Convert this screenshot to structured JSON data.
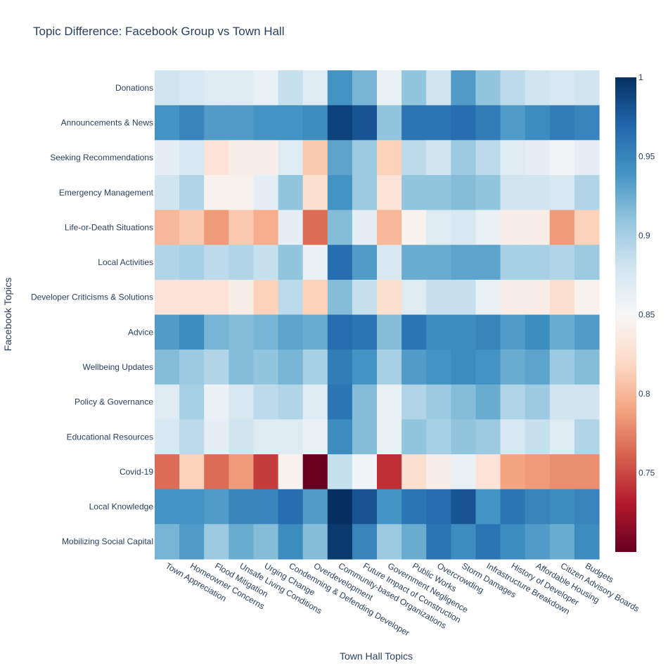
{
  "chart_data": {
    "type": "heatmap",
    "title": "Topic Difference: Facebook Group vs Town Hall",
    "xlabel": "Town Hall Topics",
    "ylabel": "Facebook Topics",
    "x_categories": [
      "Town Appreciation",
      "Homeowner Concerns",
      "Flood Mitigation",
      "Unsafe Living Conditions",
      "Urging Change",
      "Condemning & Defending Developer",
      "Overdevelopment",
      "Community-based Organizations",
      "Future Impact of Construction",
      "Government Negligence",
      "Public Works",
      "Overcrowding",
      "Storm Damages",
      "Infrastructure Breakdown",
      "History of Developer",
      "Affordable Housing",
      "Citizen Advisory Boards",
      "Budgets"
    ],
    "y_categories": [
      "Donations",
      "Announcements & News",
      "Seeking Recommendations",
      "Emergency Management",
      "Life-or-Death Situations",
      "Local Activities",
      "Developer Criticisms & Solutions",
      "Advice",
      "Wellbeing Updates",
      "Policy & Governance",
      "Educational Resources",
      "Covid-19",
      "Local Knowledge",
      "Mobilizing Social Capital"
    ],
    "z": [
      [
        0.88,
        0.875,
        0.87,
        0.87,
        0.86,
        0.885,
        0.87,
        0.94,
        0.92,
        0.86,
        0.91,
        0.88,
        0.935,
        0.91,
        0.89,
        0.88,
        0.875,
        0.88
      ],
      [
        0.94,
        0.95,
        0.935,
        0.935,
        0.94,
        0.94,
        0.945,
        0.99,
        0.98,
        0.91,
        0.96,
        0.96,
        0.965,
        0.955,
        0.935,
        0.945,
        0.955,
        0.95
      ],
      [
        0.865,
        0.875,
        0.83,
        0.84,
        0.84,
        0.87,
        0.81,
        0.93,
        0.905,
        0.815,
        0.89,
        0.88,
        0.905,
        0.89,
        0.87,
        0.865,
        0.855,
        0.865
      ],
      [
        0.88,
        0.895,
        0.845,
        0.845,
        0.865,
        0.91,
        0.825,
        0.94,
        0.905,
        0.83,
        0.91,
        0.91,
        0.915,
        0.91,
        0.88,
        0.88,
        0.875,
        0.895
      ],
      [
        0.8,
        0.81,
        0.785,
        0.81,
        0.795,
        0.865,
        0.765,
        0.915,
        0.865,
        0.8,
        0.845,
        0.87,
        0.875,
        0.86,
        0.84,
        0.84,
        0.785,
        0.815
      ],
      [
        0.895,
        0.9,
        0.89,
        0.895,
        0.885,
        0.91,
        0.86,
        0.965,
        0.935,
        0.875,
        0.925,
        0.925,
        0.93,
        0.93,
        0.9,
        0.9,
        0.895,
        0.905
      ],
      [
        0.83,
        0.83,
        0.83,
        0.84,
        0.815,
        0.89,
        0.815,
        0.915,
        0.885,
        0.825,
        0.87,
        0.885,
        0.885,
        0.86,
        0.84,
        0.84,
        0.825,
        0.845
      ],
      [
        0.935,
        0.945,
        0.92,
        0.915,
        0.92,
        0.93,
        0.925,
        0.965,
        0.96,
        0.915,
        0.96,
        0.945,
        0.945,
        0.95,
        0.935,
        0.945,
        0.925,
        0.935
      ],
      [
        0.915,
        0.905,
        0.895,
        0.915,
        0.91,
        0.92,
        0.9,
        0.955,
        0.94,
        0.9,
        0.935,
        0.94,
        0.945,
        0.94,
        0.925,
        0.93,
        0.905,
        0.915
      ],
      [
        0.87,
        0.9,
        0.86,
        0.875,
        0.89,
        0.895,
        0.87,
        0.96,
        0.915,
        0.86,
        0.895,
        0.905,
        0.915,
        0.925,
        0.895,
        0.905,
        0.88,
        0.88
      ],
      [
        0.875,
        0.89,
        0.865,
        0.88,
        0.87,
        0.87,
        0.86,
        0.945,
        0.915,
        0.86,
        0.91,
        0.9,
        0.91,
        0.905,
        0.875,
        0.885,
        0.87,
        0.895
      ],
      [
        0.765,
        0.815,
        0.765,
        0.785,
        0.745,
        0.845,
        0.7,
        0.885,
        0.855,
        0.74,
        0.825,
        0.84,
        0.86,
        0.83,
        0.79,
        0.785,
        0.78,
        0.78
      ],
      [
        0.94,
        0.94,
        0.935,
        0.95,
        0.95,
        0.965,
        0.935,
        1.0,
        0.98,
        0.94,
        0.96,
        0.965,
        0.98,
        0.94,
        0.96,
        0.95,
        0.945,
        0.95
      ],
      [
        0.92,
        0.935,
        0.905,
        0.925,
        0.915,
        0.945,
        0.915,
        0.995,
        0.95,
        0.905,
        0.925,
        0.96,
        0.945,
        0.96,
        0.945,
        0.935,
        0.925,
        0.945
      ]
    ],
    "zmin": 0.7,
    "zmax": 1.0,
    "colorscale": "RdBu",
    "colorbar_ticks": [
      0.75,
      0.8,
      0.85,
      0.9,
      0.95,
      1
    ],
    "colorbar_tick_labels": [
      "0.75",
      "0.8",
      "0.85",
      "0.9",
      "0.95",
      "1"
    ]
  }
}
